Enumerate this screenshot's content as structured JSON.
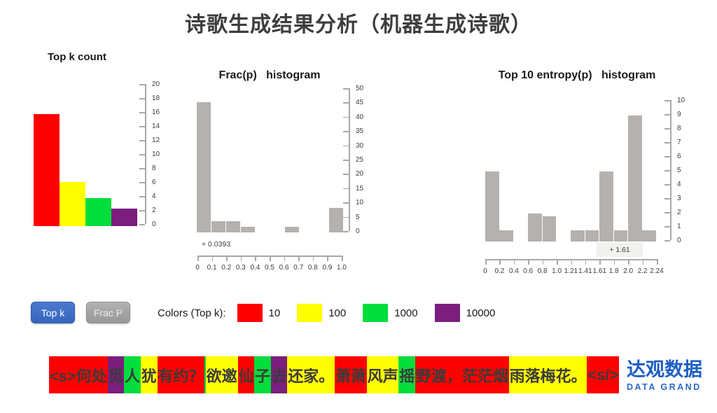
{
  "title": "诗歌生成结果分析（机器生成诗歌）",
  "colors": {
    "red": "#ff0000",
    "yellow": "#ffff00",
    "green": "#00dd3c",
    "purple": "#7b1e7e",
    "hist_bar": "#b5b1ae",
    "axis": "#a8a8a8",
    "button_blue": "#3a6bc4",
    "button_gray": "#9c9c9c",
    "logo_blue": "#1d5fc4"
  },
  "chart_data": [
    {
      "id": "topk",
      "type": "bar",
      "title": "Top k count",
      "categories": [
        "10",
        "100",
        "1000",
        "10000"
      ],
      "values": [
        16,
        6.3,
        4,
        2.5
      ],
      "bar_colors": [
        "red",
        "yellow",
        "green",
        "purple"
      ],
      "ylim": [
        0,
        20
      ],
      "yticks": [
        "20",
        "18",
        "16",
        "14",
        "12",
        "10",
        "8",
        "6",
        "4",
        "2",
        "0"
      ],
      "xlabel": "",
      "ylabel": "",
      "grid": false,
      "legend_position": "none",
      "axis_side": "right"
    },
    {
      "id": "fracp",
      "type": "bar",
      "title": "Frac(p)   histogram",
      "bins": [
        "0-0.1",
        "0.1-0.2",
        "0.2-0.3",
        "0.3-0.4",
        "0.4-0.5",
        "0.5-0.6",
        "0.6-0.7",
        "0.7-0.8",
        "0.8-0.9",
        "0.9-1.0"
      ],
      "values": [
        45.5,
        4,
        4,
        2,
        0,
        0,
        2,
        0,
        0,
        8.5
      ],
      "ylim": [
        0,
        50
      ],
      "yticks": [
        "50",
        "45",
        "40",
        "35",
        "30",
        "25",
        "20",
        "15",
        "10",
        "5",
        "0"
      ],
      "xticks": [
        "0",
        "0.1",
        "0.2",
        "0.3",
        "0.4",
        "0.5",
        "0.6",
        "0.7",
        "0.8",
        "0.9",
        "1.0"
      ],
      "annotation": "+ 0.0393",
      "xlabel": "",
      "ylabel": "",
      "grid": false,
      "legend_position": "none",
      "axis_side": "right"
    },
    {
      "id": "entropy",
      "type": "bar",
      "title": "Top 10 entropy(p)   histogram",
      "bins": [
        "0-0.2",
        "0.2-0.4",
        "0.4-0.6",
        "0.6-0.8",
        "0.8-1.0",
        "1.0-1.21",
        "1.21-1.41",
        "1.41-1.61",
        "1.61-1.8",
        "1.8-2.0",
        "2.0-2.2",
        "2.2-2.24"
      ],
      "values": [
        5,
        0.8,
        0,
        2,
        1.8,
        0,
        0.8,
        0.8,
        5,
        0.8,
        9,
        0.8
      ],
      "ylim": [
        0,
        10
      ],
      "yticks": [
        "10",
        "9",
        "8",
        "7",
        "6",
        "5",
        "4",
        "3",
        "2",
        "1",
        "0"
      ],
      "xticks": [
        "0",
        "0.2",
        "0.4",
        "0.6",
        "0.8",
        "1.0",
        "1.21",
        "1.41",
        "1.61",
        "1.8",
        "2.0",
        "2.2",
        "2.24"
      ],
      "annotation": "+ 1.61",
      "annotation_boxed": true,
      "xlabel": "",
      "ylabel": "",
      "grid": false,
      "legend_position": "none",
      "axis_side": "right"
    }
  ],
  "buttons": [
    {
      "label": "Top k",
      "active": true
    },
    {
      "label": "Frac P",
      "active": false
    }
  ],
  "legend": {
    "label": "Colors (Top k):",
    "items": [
      {
        "color": "red",
        "label": "10"
      },
      {
        "color": "yellow",
        "label": "100"
      },
      {
        "color": "green",
        "label": "1000"
      },
      {
        "color": "purple",
        "label": "10000"
      }
    ]
  },
  "token_bar": {
    "segments": [
      {
        "text": "<s>何处",
        "color": "red"
      },
      {
        "text": "觅",
        "color": "purple"
      },
      {
        "text": "人",
        "color": "green"
      },
      {
        "text": "犹",
        "color": "yellow"
      },
      {
        "text": "有约？",
        "color": "red"
      },
      {
        "text": " ",
        "color": "green"
      },
      {
        "text": "欲邀",
        "color": "yellow"
      },
      {
        "text": "仙",
        "color": "red"
      },
      {
        "text": "子",
        "color": "green"
      },
      {
        "text": "去",
        "color": "purple"
      },
      {
        "text": "还家。",
        "color": "yellow"
      },
      {
        "text": "萧萧",
        "color": "red"
      },
      {
        "text": "风声",
        "color": "yellow"
      },
      {
        "text": "摇",
        "color": "green"
      },
      {
        "text": "野渡，茫茫烟",
        "color": "red"
      },
      {
        "text": "雨落梅花。",
        "color": "yellow"
      },
      {
        "text": "<s/>",
        "color": "red"
      }
    ]
  },
  "logo": {
    "cn": "达观数据",
    "en": "DATA GRAND"
  }
}
